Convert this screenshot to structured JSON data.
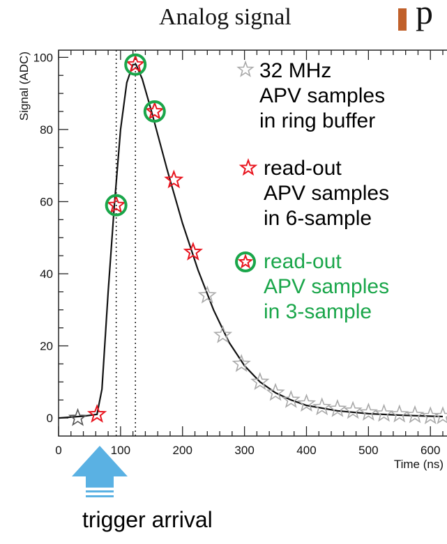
{
  "chart_data": {
    "type": "scatter",
    "title": "Analog signal",
    "xlabel": "Time (ns)",
    "ylabel": "Signal (ADC)",
    "xlim": [
      0,
      620
    ],
    "ylim": [
      -5,
      102
    ],
    "x_ticks": [
      0,
      100,
      200,
      300,
      400,
      500,
      600
    ],
    "y_ticks": [
      0,
      20,
      40,
      60,
      80,
      100
    ],
    "pulse_curve": {
      "x": [
        0,
        40,
        62,
        70,
        80,
        90,
        100,
        110,
        120,
        125,
        135,
        150,
        175,
        200,
        225,
        250,
        275,
        300,
        325,
        350,
        375,
        400,
        450,
        500,
        550,
        600,
        620
      ],
      "y": [
        0,
        0.5,
        1,
        8,
        35,
        59,
        80,
        93,
        98,
        98,
        94,
        85,
        69,
        54,
        41,
        30,
        21,
        14.5,
        10,
        7,
        5,
        3.5,
        2,
        1.2,
        0.8,
        0.5,
        0.4
      ]
    },
    "markers": {
      "vertical_lines_x": [
        93,
        124
      ]
    },
    "series": [
      {
        "name": "32 MHz APV samples in ring buffer",
        "color": "#a9a9a9",
        "x": [
          31,
          62,
          93,
          124,
          155,
          186,
          217,
          240,
          265,
          295,
          325,
          350,
          375,
          400,
          425,
          450,
          475,
          500,
          525,
          550,
          575,
          600,
          620
        ],
        "y": [
          0,
          1,
          59,
          98,
          85,
          66,
          46,
          34,
          23,
          15,
          10,
          7,
          5,
          4,
          3,
          2.5,
          2,
          1.5,
          1.2,
          1,
          0.8,
          0.5,
          0.5
        ]
      },
      {
        "name": "read-out APV samples in 6-sample",
        "color": "#e8141e",
        "x": [
          62,
          93,
          124,
          155,
          186,
          217
        ],
        "y": [
          1,
          59,
          98,
          85,
          66,
          46
        ]
      },
      {
        "name": "read-out APV samples in 3-sample",
        "color": "#1aa64a",
        "x": [
          93,
          124,
          155
        ],
        "y": [
          59,
          98,
          85
        ]
      }
    ],
    "legend": {
      "placement": "top-right",
      "entries": [
        {
          "lines": [
            "32 MHz",
            "APV samples",
            "in ring buffer"
          ],
          "color": "#000000",
          "marker": "gray-star"
        },
        {
          "lines": [
            "read-out",
            "APV samples",
            "in 6-sample"
          ],
          "color": "#000000",
          "marker": "red-star"
        },
        {
          "lines": [
            "read-out",
            "APV samples",
            "in 3-sample"
          ],
          "color": "#1aa64a",
          "marker": "green-circle-red-star"
        }
      ]
    },
    "annotation": "trigger arrival"
  },
  "corner_letter": "p",
  "colors": {
    "arrow": "#5ab1e3",
    "bullet": "#c0602a",
    "curve": "#111111"
  }
}
